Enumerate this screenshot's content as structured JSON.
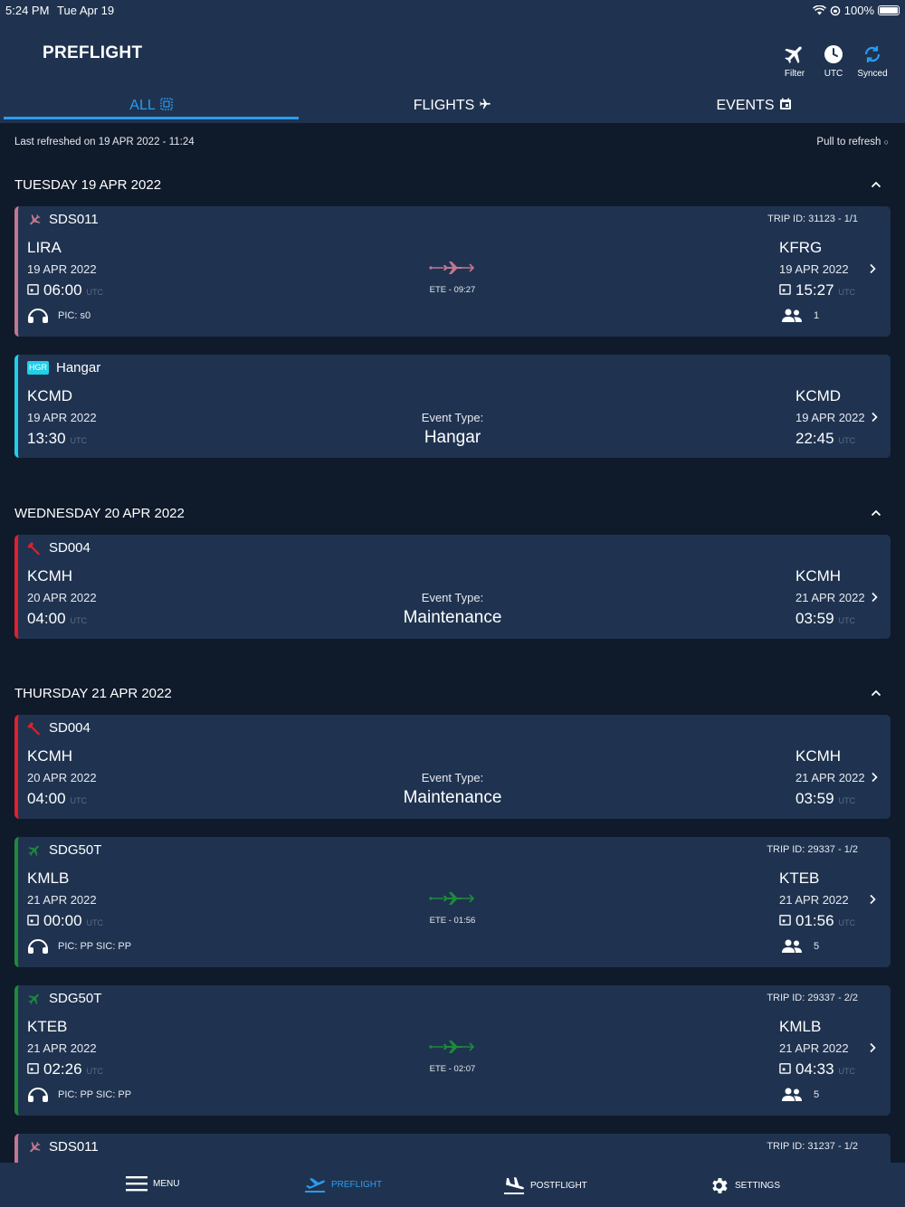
{
  "status": {
    "time": "5:24 PM",
    "date": "Tue Apr 19",
    "battery": "100%"
  },
  "header": {
    "title": "PREFLIGHT",
    "buttons": {
      "filter": "Filter",
      "utc": "UTC",
      "synced": "Synced"
    },
    "accent": "#2b9cf0"
  },
  "tabs": {
    "all": "ALL",
    "flights": "FLIGHTS",
    "events": "EVENTS",
    "active": "all"
  },
  "refresh": {
    "last": "Last refreshed on 19 APR 2022 - 11:24",
    "pull": "Pull to refresh"
  },
  "sections": [
    "TUESDAY 19 APR 2022",
    "WEDNESDAY 20 APR 2022",
    "THURSDAY 21 APR 2022"
  ],
  "utc_label": "UTC",
  "event_type_label": "Event Type:",
  "cards": [
    {
      "kind": "flight",
      "color": "#c3768f",
      "ident": "SDS011",
      "trip": "TRIP ID: 31123 - 1/1",
      "from": "LIRA",
      "from_date": "19 APR 2022",
      "from_time": "06:00",
      "to": "KFRG",
      "to_date": "19 APR 2022",
      "to_time": "15:27",
      "ete": "ETE - 09:27",
      "crew": "PIC: s0",
      "pax": "1"
    },
    {
      "kind": "event",
      "color": "#1fd0e8",
      "badge": "HGR",
      "ident": "Hangar",
      "from": "KCMD",
      "from_date": "19 APR 2022",
      "from_time": "13:30",
      "to": "KCMD",
      "to_date": "19 APR 2022",
      "to_time": "22:45",
      "event_type": "Hangar"
    },
    {
      "kind": "event",
      "color": "#e0202a",
      "ident": "SD004",
      "from": "KCMH",
      "from_date": "20 APR 2022",
      "from_time": "04:00",
      "to": "KCMH",
      "to_date": "21 APR 2022",
      "to_time": "03:59",
      "event_type": "Maintenance"
    },
    {
      "kind": "event",
      "color": "#e0202a",
      "ident": "SD004",
      "from": "KCMH",
      "from_date": "20 APR 2022",
      "from_time": "04:00",
      "to": "KCMH",
      "to_date": "21 APR 2022",
      "to_time": "03:59",
      "event_type": "Maintenance"
    },
    {
      "kind": "flight",
      "color": "#1e8a3a",
      "ident": "SDG50T",
      "trip": "TRIP ID: 29337 - 1/2",
      "from": "KMLB",
      "from_date": "21 APR 2022",
      "from_time": "00:00",
      "to": "KTEB",
      "to_date": "21 APR 2022",
      "to_time": "01:56",
      "ete": "ETE - 01:56",
      "crew": "PIC: PP SIC: PP",
      "pax": "5"
    },
    {
      "kind": "flight",
      "color": "#1e8a3a",
      "ident": "SDG50T",
      "trip": "TRIP ID: 29337 - 2/2",
      "from": "KTEB",
      "from_date": "21 APR 2022",
      "from_time": "02:26",
      "to": "KMLB",
      "to_date": "21 APR 2022",
      "to_time": "04:33",
      "ete": "ETE - 02:07",
      "crew": "PIC: PP SIC: PP",
      "pax": "5"
    },
    {
      "kind": "flight",
      "color": "#c3768f",
      "ident": "SDS011",
      "trip": "TRIP ID: 31237 - 1/2"
    }
  ],
  "bottom_nav": {
    "menu": "MENU",
    "preflight": "PREFLIGHT",
    "postflight": "POSTFLIGHT",
    "settings": "SETTINGS"
  }
}
